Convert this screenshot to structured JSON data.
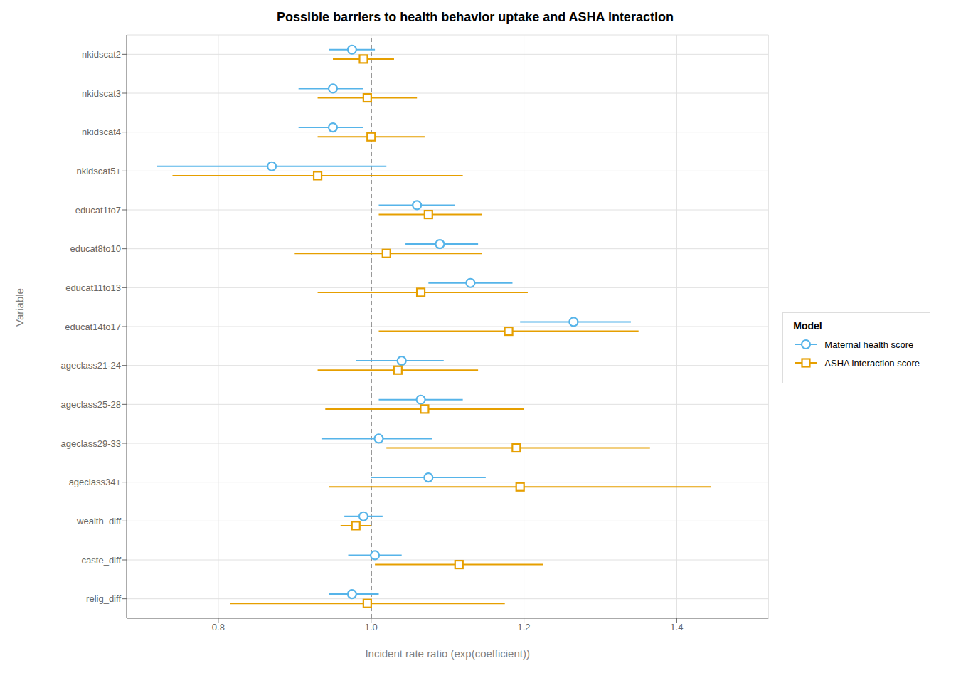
{
  "chart_data": {
    "type": "forest",
    "title": "Possible barriers to health behavior uptake and ASHA interaction",
    "xlabel": "Incident rate ratio (exp(coefficient))",
    "ylabel": "Variable",
    "categories": [
      "nkidscat2",
      "nkidscat3",
      "nkidscat4",
      "nkidscat5+",
      "educat1to7",
      "educat8to10",
      "educat11to13",
      "educat14to17",
      "ageclass21-24",
      "ageclass25-28",
      "ageclass29-33",
      "ageclass34+",
      "wealth_diff",
      "caste_diff",
      "relig_diff"
    ],
    "series": [
      {
        "name": "Maternal health score",
        "color": "#56B4E9",
        "marker": "circle",
        "values": [
          0.975,
          0.95,
          0.95,
          0.87,
          1.06,
          1.09,
          1.13,
          1.265,
          1.04,
          1.065,
          1.01,
          1.075,
          0.99,
          1.005,
          0.975
        ],
        "lower": [
          0.945,
          0.905,
          0.905,
          0.72,
          1.01,
          1.045,
          1.075,
          1.195,
          0.98,
          1.01,
          0.935,
          1.0,
          0.965,
          0.97,
          0.945
        ],
        "upper": [
          1.005,
          0.99,
          0.99,
          1.02,
          1.11,
          1.14,
          1.185,
          1.34,
          1.095,
          1.12,
          1.08,
          1.15,
          1.015,
          1.04,
          1.01
        ]
      },
      {
        "name": "ASHA interaction score",
        "color": "#E69F00",
        "marker": "square",
        "values": [
          0.99,
          0.995,
          1.0,
          0.93,
          1.075,
          1.02,
          1.065,
          1.18,
          1.035,
          1.07,
          1.19,
          1.195,
          0.98,
          1.115,
          0.995
        ],
        "lower": [
          0.95,
          0.93,
          0.93,
          0.74,
          1.01,
          0.9,
          0.93,
          1.01,
          0.93,
          0.94,
          1.02,
          0.945,
          0.96,
          1.005,
          0.815
        ],
        "upper": [
          1.03,
          1.06,
          1.07,
          1.12,
          1.145,
          1.145,
          1.205,
          1.35,
          1.14,
          1.2,
          1.365,
          1.445,
          1.0,
          1.225,
          1.175
        ]
      }
    ],
    "xlim": [
      0.68,
      1.52
    ],
    "xticks": [
      0.8,
      {
        "value": 1.0,
        "label": "1.0"
      },
      1.2,
      1.4
    ],
    "grid": true,
    "legend": "right",
    "legend_title": "Model",
    "reference_line": 1.0
  }
}
